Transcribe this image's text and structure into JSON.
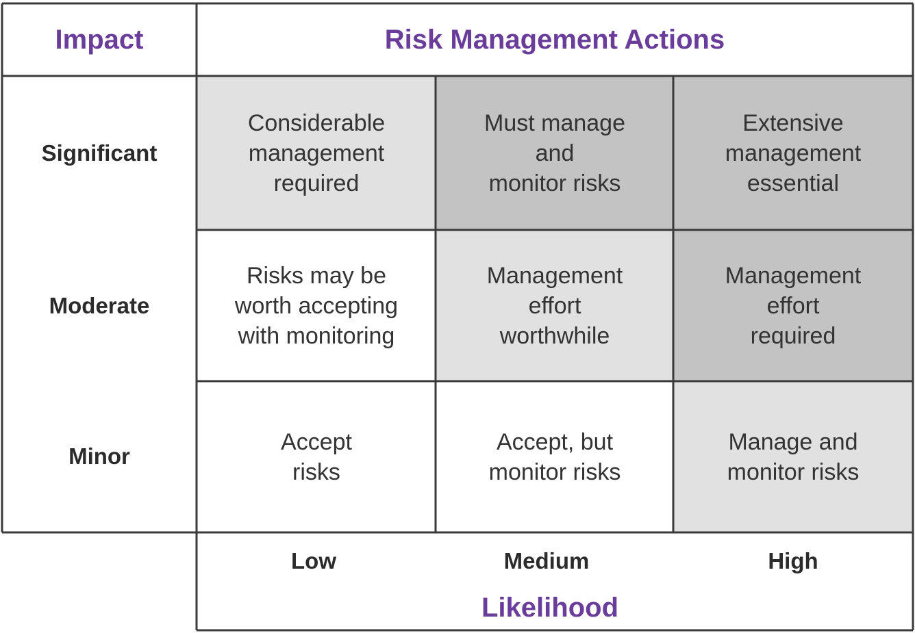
{
  "header": {
    "impact_label": "Impact",
    "actions_title": "Risk Management Actions"
  },
  "rows": [
    {
      "label": "Significant"
    },
    {
      "label": "Moderate"
    },
    {
      "label": "Minor"
    }
  ],
  "columns": [
    {
      "label": "Low"
    },
    {
      "label": "Medium"
    },
    {
      "label": "High"
    }
  ],
  "x_axis_title": "Likelihood",
  "cells": [
    [
      {
        "text": "Considerable\nmanagement\nrequired",
        "fill": "#e1e1e1"
      },
      {
        "text": "Must manage\nand\nmonitor risks",
        "fill": "#c3c3c3"
      },
      {
        "text": "Extensive\nmanagement\nessential",
        "fill": "#c3c3c3"
      }
    ],
    [
      {
        "text": "Risks may be\nworth accepting\nwith monitoring",
        "fill": "#ffffff"
      },
      {
        "text": "Management\neffort\nworthwhile",
        "fill": "#e1e1e1"
      },
      {
        "text": "Management\neffort\nrequired",
        "fill": "#c3c3c3"
      }
    ],
    [
      {
        "text": "Accept\nrisks",
        "fill": "#ffffff"
      },
      {
        "text": "Accept, but\nmonitor risks",
        "fill": "#ffffff"
      },
      {
        "text": "Manage and\nmonitor risks",
        "fill": "#e1e1e1"
      }
    ]
  ]
}
